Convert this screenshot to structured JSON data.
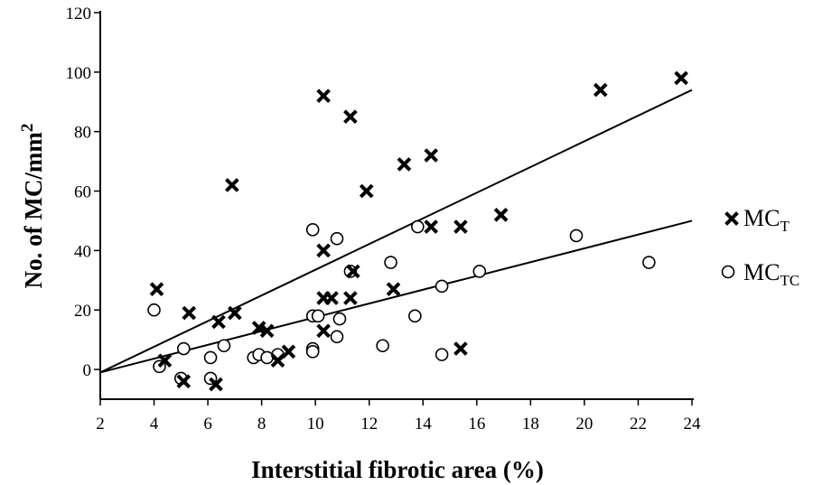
{
  "chart_data": {
    "type": "scatter",
    "title": "",
    "xlabel": "Interstitial fibrotic area (%)",
    "ylabel": {
      "main": "No. of MC/mm",
      "sup": "2"
    },
    "xlim": [
      2,
      24
    ],
    "ylim": [
      -10,
      120
    ],
    "xticks": [
      2,
      4,
      6,
      8,
      10,
      12,
      14,
      16,
      18,
      20,
      22,
      24
    ],
    "yticks": [
      0,
      20,
      40,
      60,
      80,
      100,
      120
    ],
    "grid": false,
    "legend_position": "right",
    "series": [
      {
        "name": {
          "main": "MC",
          "sub": "T"
        },
        "marker": "x",
        "color": "#000000",
        "points": [
          [
            4.1,
            27
          ],
          [
            4.4,
            3
          ],
          [
            5.1,
            -4
          ],
          [
            5.3,
            19
          ],
          [
            6.3,
            -5
          ],
          [
            6.4,
            16
          ],
          [
            6.9,
            62
          ],
          [
            7.0,
            19
          ],
          [
            7.9,
            14
          ],
          [
            8.2,
            13
          ],
          [
            8.6,
            3
          ],
          [
            9.0,
            6
          ],
          [
            10.3,
            92
          ],
          [
            10.3,
            40
          ],
          [
            10.3,
            24
          ],
          [
            10.3,
            13
          ],
          [
            10.6,
            24
          ],
          [
            11.3,
            85
          ],
          [
            11.4,
            33
          ],
          [
            11.3,
            24
          ],
          [
            11.9,
            60
          ],
          [
            12.9,
            27
          ],
          [
            13.3,
            69
          ],
          [
            14.3,
            72
          ],
          [
            14.3,
            48
          ],
          [
            15.4,
            48
          ],
          [
            15.4,
            7
          ],
          [
            16.9,
            52
          ],
          [
            20.6,
            94
          ],
          [
            23.6,
            98
          ]
        ],
        "regression": [
          [
            2,
            -1
          ],
          [
            24,
            94
          ]
        ]
      },
      {
        "name": {
          "main": "MC",
          "sub": "TC"
        },
        "marker": "circle",
        "color": "#000000",
        "points": [
          [
            4.0,
            20
          ],
          [
            4.2,
            1
          ],
          [
            5.0,
            -3
          ],
          [
            5.1,
            7
          ],
          [
            6.1,
            -3
          ],
          [
            6.1,
            4
          ],
          [
            6.6,
            8
          ],
          [
            7.7,
            4
          ],
          [
            7.9,
            5
          ],
          [
            8.2,
            4
          ],
          [
            8.6,
            5
          ],
          [
            9.9,
            47
          ],
          [
            9.9,
            18
          ],
          [
            9.9,
            7
          ],
          [
            9.9,
            6
          ],
          [
            10.1,
            18
          ],
          [
            10.8,
            44
          ],
          [
            10.9,
            17
          ],
          [
            10.8,
            11
          ],
          [
            11.3,
            33
          ],
          [
            12.5,
            8
          ],
          [
            12.8,
            36
          ],
          [
            13.8,
            48
          ],
          [
            13.7,
            18
          ],
          [
            14.7,
            28
          ],
          [
            14.7,
            5
          ],
          [
            16.1,
            33
          ],
          [
            19.7,
            45
          ],
          [
            22.4,
            36
          ]
        ],
        "regression": [
          [
            2,
            -1
          ],
          [
            24,
            50
          ]
        ]
      }
    ]
  }
}
